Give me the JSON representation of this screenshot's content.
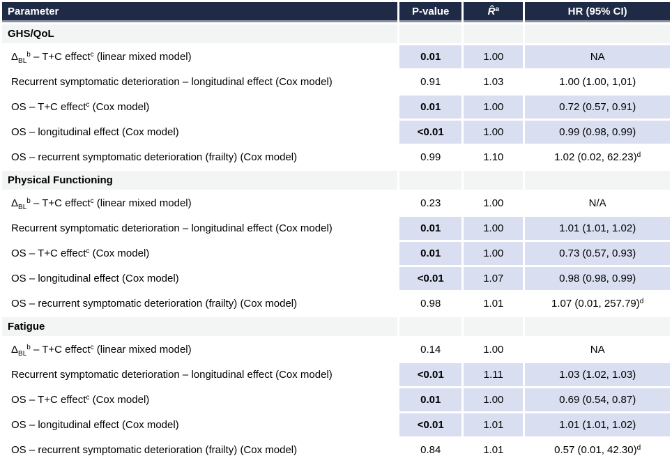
{
  "table": {
    "colors": {
      "header_bg": "#1F2A46",
      "header_rule": "#8A92A4",
      "highlight": "#D9DEF0",
      "section_bg": "#F3F4F4",
      "header_text": "#FFFFFF",
      "body_text": "#000000"
    },
    "columns": [
      {
        "key": "parameter",
        "label": "Parameter"
      },
      {
        "key": "p-value",
        "label": "P-value"
      },
      {
        "key": "r-hat",
        "label_parts": [
          {
            "i": "R̂"
          },
          {
            "sup": "a"
          }
        ]
      },
      {
        "key": "hr-ci",
        "label": "HR (95% CI)"
      }
    ],
    "sections": [
      {
        "title": "GHS/QoL",
        "rows": [
          {
            "parameter": [
              {
                "t": "Δ"
              },
              {
                "sub": "BL"
              },
              {
                "sup": "b"
              },
              {
                "t": " – T+C effect"
              },
              {
                "sup": "c"
              },
              {
                "t": " (linear mixed model)"
              }
            ],
            "pvalue": "0.01",
            "rhat": "1.00",
            "hr": [
              {
                "t": "NA"
              }
            ],
            "highlight": true
          },
          {
            "parameter": [
              {
                "t": "Recurrent symptomatic deterioration – longitudinal effect (Cox model)"
              }
            ],
            "pvalue": "0.91",
            "rhat": "1.03",
            "hr": [
              {
                "t": "1.00 (1.00, 1,01)"
              }
            ],
            "highlight": false
          },
          {
            "parameter": [
              {
                "t": "OS – T+C effect"
              },
              {
                "sup": "c"
              },
              {
                "t": " (Cox model)"
              }
            ],
            "pvalue": "0.01",
            "rhat": "1.00",
            "hr": [
              {
                "t": "0.72 (0.57, 0.91)"
              }
            ],
            "highlight": true
          },
          {
            "parameter": [
              {
                "t": "OS – longitudinal effect (Cox model)"
              }
            ],
            "pvalue": "<0.01",
            "rhat": "1.00",
            "hr": [
              {
                "t": "0.99 (0.98, 0.99)"
              }
            ],
            "highlight": true
          },
          {
            "parameter": [
              {
                "t": "OS – recurrent symptomatic deterioration (frailty) (Cox model)"
              }
            ],
            "pvalue": "0.99",
            "rhat": "1.10",
            "hr": [
              {
                "t": "1.02 (0.02, 62.23)"
              },
              {
                "sup": "d"
              }
            ],
            "highlight": false
          }
        ]
      },
      {
        "title": "Physical Functioning",
        "rows": [
          {
            "parameter": [
              {
                "t": "Δ"
              },
              {
                "sub": "BL"
              },
              {
                "sup": "b"
              },
              {
                "t": " – T+C effect"
              },
              {
                "sup": "c"
              },
              {
                "t": " (linear mixed model)"
              }
            ],
            "pvalue": "0.23",
            "rhat": "1.00",
            "hr": [
              {
                "t": "N/A"
              }
            ],
            "highlight": false
          },
          {
            "parameter": [
              {
                "t": "Recurrent symptomatic deterioration – longitudinal effect (Cox model)"
              }
            ],
            "pvalue": "0.01",
            "rhat": "1.00",
            "hr": [
              {
                "t": "1.01 (1.01, 1.02)"
              }
            ],
            "highlight": true
          },
          {
            "parameter": [
              {
                "t": "OS – T+C effect"
              },
              {
                "sup": "c"
              },
              {
                "t": " (Cox model)"
              }
            ],
            "pvalue": "0.01",
            "rhat": "1.00",
            "hr": [
              {
                "t": "0.73 (0.57, 0.93)"
              }
            ],
            "highlight": true
          },
          {
            "parameter": [
              {
                "t": "OS – longitudinal effect (Cox model)"
              }
            ],
            "pvalue": "<0.01",
            "rhat": "1.07",
            "hr": [
              {
                "t": "0.98 (0.98, 0.99)"
              }
            ],
            "highlight": true
          },
          {
            "parameter": [
              {
                "t": "OS – recurrent symptomatic deterioration (frailty) (Cox model)"
              }
            ],
            "pvalue": "0.98",
            "rhat": "1.01",
            "hr": [
              {
                "t": "1.07 (0.01, 257.79)"
              },
              {
                "sup": "d"
              }
            ],
            "highlight": false
          }
        ]
      },
      {
        "title": "Fatigue",
        "rows": [
          {
            "parameter": [
              {
                "t": "Δ"
              },
              {
                "sub": "BL"
              },
              {
                "sup": "b"
              },
              {
                "t": " – T+C effect"
              },
              {
                "sup": "c"
              },
              {
                "t": " (linear mixed model)"
              }
            ],
            "pvalue": "0.14",
            "rhat": "1.00",
            "hr": [
              {
                "t": "NA"
              }
            ],
            "highlight": false
          },
          {
            "parameter": [
              {
                "t": "Recurrent symptomatic deterioration – longitudinal effect (Cox model)"
              }
            ],
            "pvalue": "<0.01",
            "rhat": "1.11",
            "hr": [
              {
                "t": "1.03 (1.02, 1.03)"
              }
            ],
            "highlight": true
          },
          {
            "parameter": [
              {
                "t": "OS – T+C effect"
              },
              {
                "sup": "c"
              },
              {
                "t": " (Cox model)"
              }
            ],
            "pvalue": "0.01",
            "rhat": "1.00",
            "hr": [
              {
                "t": "0.69 (0.54, 0.87)"
              }
            ],
            "highlight": true
          },
          {
            "parameter": [
              {
                "t": "OS – longitudinal effect (Cox model)"
              }
            ],
            "pvalue": "<0.01",
            "rhat": "1.01",
            "hr": [
              {
                "t": "1.01 (1.01, 1.02)"
              }
            ],
            "highlight": true
          },
          {
            "parameter": [
              {
                "t": "OS – recurrent symptomatic deterioration (frailty) (Cox model)"
              }
            ],
            "pvalue": "0.84",
            "rhat": "1.01",
            "hr": [
              {
                "t": "0.57 (0.01, 42.30)"
              },
              {
                "sup": "d"
              }
            ],
            "highlight": false
          }
        ]
      }
    ]
  }
}
